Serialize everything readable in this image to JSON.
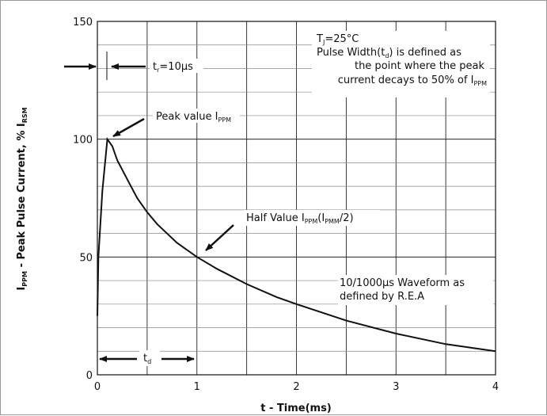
{
  "chart_data": {
    "type": "line",
    "title": "",
    "xlabel": "t - Time(ms)",
    "ylabel": {
      "main": "I",
      "main_sub": "PPM",
      "rest": " - Peak Pulse Current, % I",
      "rest_sub": "RSM"
    },
    "xlim": [
      0,
      4
    ],
    "ylim": [
      0,
      150
    ],
    "x_ticks": [
      0,
      1,
      2,
      3,
      4
    ],
    "y_ticks": [
      0,
      50,
      100,
      150
    ],
    "grid": "on",
    "series": [
      {
        "x": [
          0,
          0.01,
          0.05,
          0.1,
          0.15,
          0.2,
          0.3,
          0.4,
          0.5,
          0.6,
          0.8,
          1.0,
          1.2,
          1.5,
          1.8,
          2.0,
          2.5,
          3.0,
          3.5,
          4.0
        ],
        "y": [
          25,
          50,
          78,
          100,
          97,
          91,
          83,
          75,
          69,
          64,
          56,
          50,
          45,
          38.5,
          33,
          30,
          23,
          17.5,
          13,
          10
        ]
      }
    ],
    "annotations": {
      "conditions": {
        "line1_a": "T",
        "line1_sub": "J",
        "line1_b": "=25°C",
        "line2": "Pulse Width(t",
        "line2_sub": "d",
        "line2_b": ") is defined as",
        "line3": "the point where the peak",
        "line4_a": "current decays to 50% of I",
        "line4_sub": "PPM"
      },
      "rise_time": {
        "a": "t",
        "sub": "r",
        "b": "=10µs"
      },
      "peak_value": {
        "a": "Peak value I",
        "sub": "PPM"
      },
      "half_value": {
        "a": "Half Value I",
        "sub1": "PPM",
        "b": "(I",
        "sub2": "PMM",
        "c": "/2)"
      },
      "waveform": {
        "line1": "10/1000µs Waveform as",
        "line2": "defined by R.E.A"
      },
      "pulse_width": {
        "a": "t",
        "sub": "d"
      }
    }
  }
}
